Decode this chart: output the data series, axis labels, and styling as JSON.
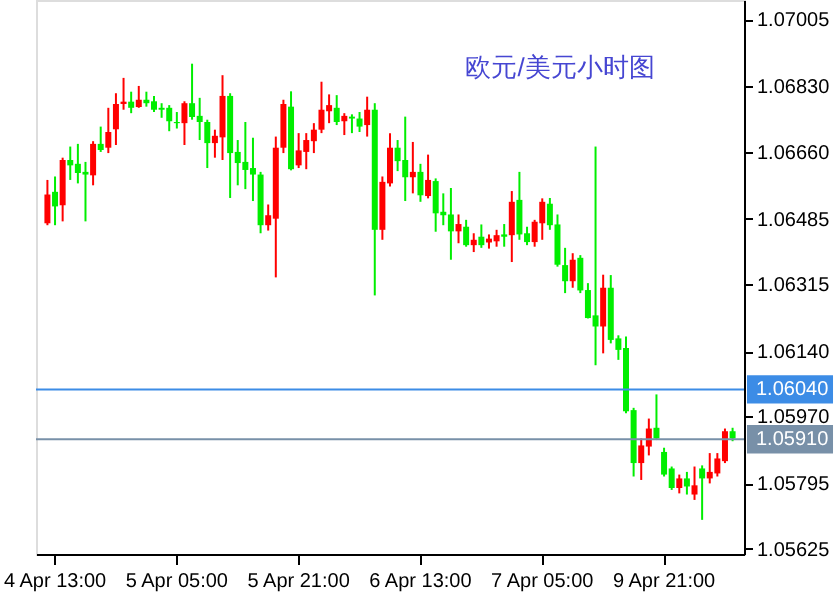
{
  "chart_data": {
    "type": "candlestick",
    "title": "欧元/美元小时图",
    "categories": [
      null,
      "4 Apr 13:00",
      null,
      null,
      null,
      null,
      null,
      null,
      null,
      null,
      null,
      null,
      null,
      null,
      null,
      null,
      null,
      "5 Apr 05:00",
      null,
      null,
      null,
      null,
      null,
      null,
      null,
      null,
      null,
      null,
      null,
      null,
      null,
      null,
      null,
      "5 Apr 21:00",
      null,
      null,
      null,
      null,
      null,
      null,
      null,
      null,
      null,
      null,
      null,
      null,
      null,
      null,
      null,
      "6 Apr 13:00",
      null,
      null,
      null,
      null,
      null,
      null,
      null,
      null,
      null,
      null,
      null,
      null,
      null,
      null,
      null,
      "7 Apr 05:00",
      null,
      null,
      null,
      null,
      null,
      null,
      null,
      null,
      null,
      null,
      null,
      null,
      null,
      null,
      null,
      "9 Apr 21:00",
      null,
      null,
      null,
      null,
      null,
      null,
      null,
      null,
      null
    ],
    "ohlc": [
      [
        1.06473,
        1.06586,
        1.06468,
        1.06548
      ],
      [
        1.06555,
        1.06595,
        1.06468,
        1.06517
      ],
      [
        1.0652,
        1.06644,
        1.06478,
        1.06638
      ],
      [
        1.06638,
        1.06673,
        1.06586,
        1.06624
      ],
      [
        1.06628,
        1.0668,
        1.06577,
        1.06604
      ],
      [
        1.06607,
        1.06633,
        1.06478,
        1.066
      ],
      [
        1.06598,
        1.06687,
        1.06572,
        1.0668
      ],
      [
        1.0668,
        1.06725,
        1.06659,
        1.06664
      ],
      [
        1.0667,
        1.06774,
        1.06656,
        1.06711
      ],
      [
        1.06718,
        1.06812,
        1.06677,
        1.06784
      ],
      [
        1.06784,
        1.06852,
        1.06769,
        1.0679
      ],
      [
        1.0679,
        1.06816,
        1.0676,
        1.06774
      ],
      [
        1.06776,
        1.06831,
        1.06774,
        1.06795
      ],
      [
        1.06795,
        1.06816,
        1.06777,
        1.06786
      ],
      [
        1.06791,
        1.06805,
        1.06763,
        1.06769
      ],
      [
        1.06774,
        1.06786,
        1.06748,
        1.06769
      ],
      [
        1.06774,
        1.06781,
        1.06713,
        1.06739
      ],
      [
        1.06737,
        1.06763,
        1.0672,
        1.06734
      ],
      [
        1.06734,
        1.06791,
        1.06677,
        1.06786
      ],
      [
        1.06786,
        1.06889,
        1.06743,
        1.0675
      ],
      [
        1.06753,
        1.068,
        1.0669,
        1.06737
      ],
      [
        1.06737,
        1.06743,
        1.06617,
        1.06682
      ],
      [
        1.06682,
        1.06717,
        1.06644,
        1.06701
      ],
      [
        1.06697,
        1.06859,
        1.06638,
        1.06805
      ],
      [
        1.06805,
        1.06812,
        1.06539,
        1.06656
      ],
      [
        1.06659,
        1.0669,
        1.06572,
        1.0663
      ],
      [
        1.06633,
        1.06737,
        1.06562,
        1.06612
      ],
      [
        1.06617,
        1.06696,
        1.06531,
        1.066
      ],
      [
        1.066,
        1.06607,
        1.06447,
        1.06468
      ],
      [
        1.06468,
        1.06522,
        1.06454,
        1.06494
      ],
      [
        1.06485,
        1.06699,
        1.06332,
        1.0667
      ],
      [
        1.0667,
        1.06795,
        1.06656,
        1.06784
      ],
      [
        1.06777,
        1.06817,
        1.06611,
        1.06614
      ],
      [
        1.06624,
        1.06708,
        1.06617,
        1.06663
      ],
      [
        1.06659,
        1.06708,
        1.06614,
        1.0669
      ],
      [
        1.06687,
        1.06734,
        1.06656,
        1.06717
      ],
      [
        1.06717,
        1.06842,
        1.06708,
        1.06769
      ],
      [
        1.06765,
        1.06809,
        1.06734,
        1.06781
      ],
      [
        1.06774,
        1.06807,
        1.06729,
        1.06737
      ],
      [
        1.06739,
        1.0676,
        1.06703,
        1.06753
      ],
      [
        1.06751,
        1.06757,
        1.06708,
        1.06746
      ],
      [
        1.06746,
        1.06763,
        1.06711,
        1.06725
      ],
      [
        1.06729,
        1.06803,
        1.06699,
        1.06769
      ],
      [
        1.06769,
        1.06786,
        1.06285,
        1.06456
      ],
      [
        1.06456,
        1.06595,
        1.0643,
        1.06581
      ],
      [
        1.06577,
        1.06708,
        1.06569,
        1.0667
      ],
      [
        1.0667,
        1.0669,
        1.06609,
        1.06635
      ],
      [
        1.06638,
        1.06751,
        1.06531,
        1.06593
      ],
      [
        1.06593,
        1.06685,
        1.06551,
        1.06607
      ],
      [
        1.06607,
        1.06628,
        1.06529,
        1.06546
      ],
      [
        1.06544,
        1.06652,
        1.06538,
        1.06586
      ],
      [
        1.06583,
        1.0659,
        1.06451,
        1.06499
      ],
      [
        1.06503,
        1.06551,
        1.06468,
        1.06494
      ],
      [
        1.06496,
        1.06565,
        1.06378,
        1.06452
      ],
      [
        1.06452,
        1.06496,
        1.06421,
        1.06471
      ],
      [
        1.06464,
        1.06482,
        1.06412,
        1.06416
      ],
      [
        1.06416,
        1.06447,
        1.06398,
        1.0643
      ],
      [
        1.06438,
        1.0647,
        1.06409,
        1.06416
      ],
      [
        1.06423,
        1.06444,
        1.06407,
        1.06433
      ],
      [
        1.06426,
        1.06456,
        1.06412,
        1.06442
      ],
      [
        1.06444,
        1.06471,
        1.06412,
        1.06438
      ],
      [
        1.06442,
        1.06557,
        1.06372,
        1.06529
      ],
      [
        1.06534,
        1.06607,
        1.0643,
        1.06444
      ],
      [
        1.06447,
        1.06464,
        1.06416,
        1.06424
      ],
      [
        1.06424,
        1.06482,
        1.06412,
        1.06477
      ],
      [
        1.06473,
        1.06538,
        1.0643,
        1.06529
      ],
      [
        1.06524,
        1.06539,
        1.06456,
        1.06468
      ],
      [
        1.0647,
        1.06496,
        1.0636,
        1.06365
      ],
      [
        1.06364,
        1.06409,
        1.06291,
        1.06322
      ],
      [
        1.06322,
        1.06395,
        1.06305,
        1.06378
      ],
      [
        1.06383,
        1.0639,
        1.06291,
        1.06298
      ],
      [
        1.06299,
        1.06317,
        1.06225,
        1.06226
      ],
      [
        1.06233,
        1.06673,
        1.06103,
        1.06204
      ],
      [
        1.06204,
        1.06339,
        1.06134,
        1.06305
      ],
      [
        1.06305,
        1.06338,
        1.0616,
        1.06169
      ],
      [
        1.06173,
        1.06181,
        1.06117,
        1.06143
      ],
      [
        1.06148,
        1.06178,
        1.05978,
        1.05983
      ],
      [
        1.05986,
        1.05992,
        1.05813,
        1.05848
      ],
      [
        1.05848,
        1.05912,
        1.05804,
        1.05894
      ],
      [
        1.05891,
        1.05964,
        1.05868,
        1.05938
      ],
      [
        1.0594,
        1.06027,
        1.05908,
        1.05912
      ],
      [
        1.05877,
        1.05888,
        1.05813,
        1.05818
      ],
      [
        1.05834,
        1.05839,
        1.05778,
        1.05783
      ],
      [
        1.05783,
        1.05818,
        1.05769,
        1.05808
      ],
      [
        1.05808,
        1.05825,
        1.05766,
        1.05787
      ],
      [
        1.05766,
        1.05839,
        1.05752,
        1.0579
      ],
      [
        1.05834,
        1.05842,
        1.057,
        1.05808
      ],
      [
        1.05808,
        1.05874,
        1.05795,
        1.05825
      ],
      [
        1.05821,
        1.05874,
        1.05813,
        1.0586
      ],
      [
        1.05853,
        1.05938,
        1.05848,
        1.05931
      ],
      [
        1.05931,
        1.0594,
        1.05905,
        1.05912
      ]
    ],
    "ylim": [
      1.05611,
      1.07055
    ],
    "yticks": [
      1.07005,
      {
        "value": 1.0683,
        "label": "1.06830"
      },
      {
        "value": 1.0666,
        "label": "1.06660"
      },
      1.06485,
      1.06315,
      {
        "value": 1.0614,
        "label": "1.06140"
      },
      {
        "value": 1.0597,
        "label": "1.05970"
      },
      1.05795,
      1.05625
    ],
    "ref_lines": [
      {
        "axis": "y",
        "value": 1.0604,
        "label": "1.06040",
        "color": "#3c8ce6"
      },
      {
        "axis": "y",
        "value": 1.0591,
        "label": "1.05910",
        "color": "#7890a8"
      }
    ],
    "grid": false
  }
}
